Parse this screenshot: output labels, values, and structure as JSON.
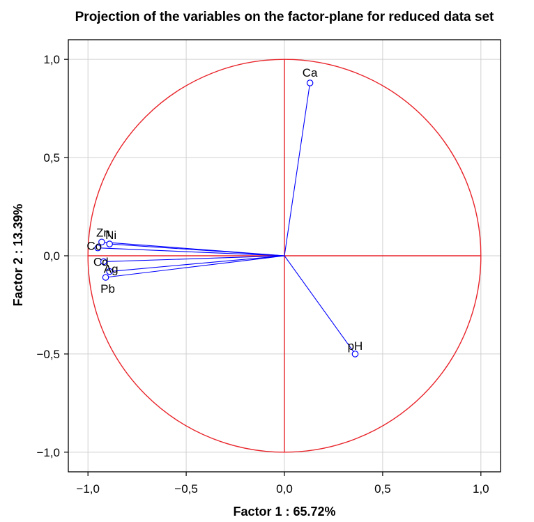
{
  "chart_data": {
    "type": "scatter",
    "title": "Projection of the variables on the factor-plane for reduced data set",
    "xlabel": "Factor 1 : 65.72%",
    "ylabel": "Factor 2 : 13.39%",
    "xlim": [
      -1.1,
      1.1
    ],
    "ylim": [
      -1.1,
      1.1
    ],
    "xticks": [
      -1.0,
      -0.5,
      0.0,
      0.5,
      1.0
    ],
    "yticks": [
      1.0,
      0.5,
      0.0,
      -0.5,
      -1.0
    ],
    "xtick_labels": [
      "−1,0",
      "−0,5",
      "0,0",
      "0,5",
      "1,0"
    ],
    "ytick_labels": [
      "1,0",
      "0,5",
      "0,0",
      "−0,5",
      "−1,0"
    ],
    "grid": true,
    "unit_circle": true,
    "colors": {
      "circle": "#e8242a",
      "axes_cross": "#e8242a",
      "vectors": "#0000ff",
      "grid": "#d0d0d0"
    },
    "points": [
      {
        "label": "Ca",
        "x": 0.13,
        "y": 0.88
      },
      {
        "label": "pH",
        "x": 0.36,
        "y": -0.5
      },
      {
        "label": "Zn",
        "x": -0.93,
        "y": 0.07
      },
      {
        "label": "Ni",
        "x": -0.89,
        "y": 0.06
      },
      {
        "label": "Co",
        "x": -0.95,
        "y": 0.04
      },
      {
        "label": "Cd",
        "x": -0.92,
        "y": -0.03
      },
      {
        "label": "Ag",
        "x": -0.89,
        "y": -0.08
      },
      {
        "label": "Pb",
        "x": -0.91,
        "y": -0.11
      }
    ]
  }
}
